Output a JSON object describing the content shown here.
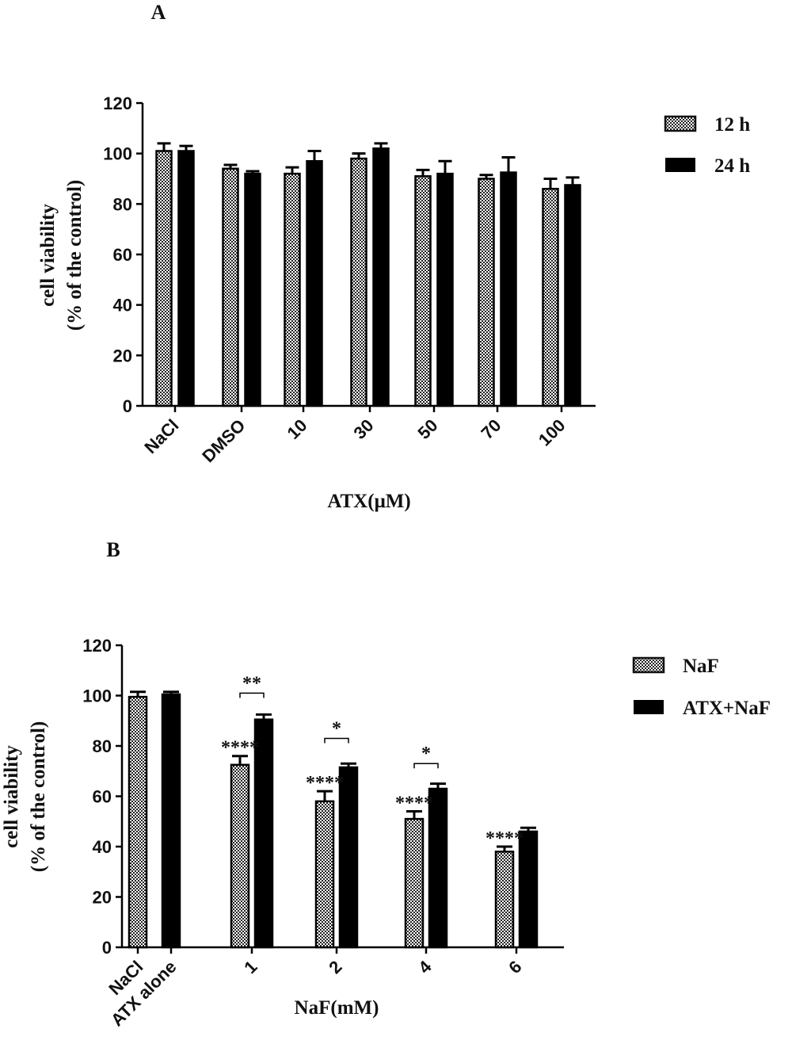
{
  "chart_data": [
    {
      "type": "bar",
      "panel_label": "A",
      "xlabel": "ATX(μM)",
      "ylabel": [
        "cell viability",
        "(% of the control)"
      ],
      "ylim": [
        0,
        120
      ],
      "yticks": [
        "0",
        "20",
        "40",
        "60",
        "80",
        "100",
        "120"
      ],
      "categories": [
        "NaCl",
        "DMSO",
        "10",
        "30",
        "50",
        "70",
        "100"
      ],
      "legend_position": "top-right",
      "series": [
        {
          "name": "12 h",
          "pattern": "checker",
          "values": [
            101,
            94,
            92,
            98,
            91,
            90,
            86
          ],
          "errors": [
            3,
            1.5,
            2.5,
            2,
            2.5,
            1.5,
            4
          ]
        },
        {
          "name": "24 h",
          "pattern": "solid",
          "values": [
            101,
            92,
            97,
            102,
            92,
            92.5,
            87.5
          ],
          "errors": [
            2,
            1,
            4,
            2,
            5,
            6,
            3
          ]
        }
      ],
      "annotations": []
    },
    {
      "type": "bar",
      "panel_label": "B",
      "xlabel": "NaF(mM)",
      "ylabel": [
        "cell viability",
        "(% of the control)"
      ],
      "ylim": [
        0,
        120
      ],
      "yticks": [
        "0",
        "20",
        "40",
        "60",
        "80",
        "100",
        "120"
      ],
      "categories": [
        "NaCl",
        "ATX alone",
        "1",
        "2",
        "4",
        "6"
      ],
      "legend_position": "top-right",
      "series": [
        {
          "name": "NaF",
          "pattern": "checker",
          "values": [
            99.5,
            null,
            72.5,
            58,
            51,
            38
          ],
          "errors": [
            2,
            null,
            3.5,
            4,
            3,
            2
          ]
        },
        {
          "name": "ATX+NaF",
          "pattern": "solid",
          "values": [
            null,
            100.5,
            90.5,
            71.5,
            63,
            46
          ],
          "errors": [
            null,
            1,
            2,
            1.5,
            2,
            1.5
          ]
        }
      ],
      "annotations": [
        {
          "category": 2,
          "series": 0,
          "text": "****"
        },
        {
          "category": 3,
          "series": 0,
          "text": "****"
        },
        {
          "category": 4,
          "series": 0,
          "text": "****"
        },
        {
          "category": 5,
          "series": 0,
          "text": "****"
        },
        {
          "category": 2,
          "bracket": true,
          "level": 101,
          "text": "**"
        },
        {
          "category": 3,
          "bracket": true,
          "level": 83,
          "text": "*"
        },
        {
          "category": 4,
          "bracket": true,
          "level": 73,
          "text": "*"
        }
      ]
    }
  ]
}
